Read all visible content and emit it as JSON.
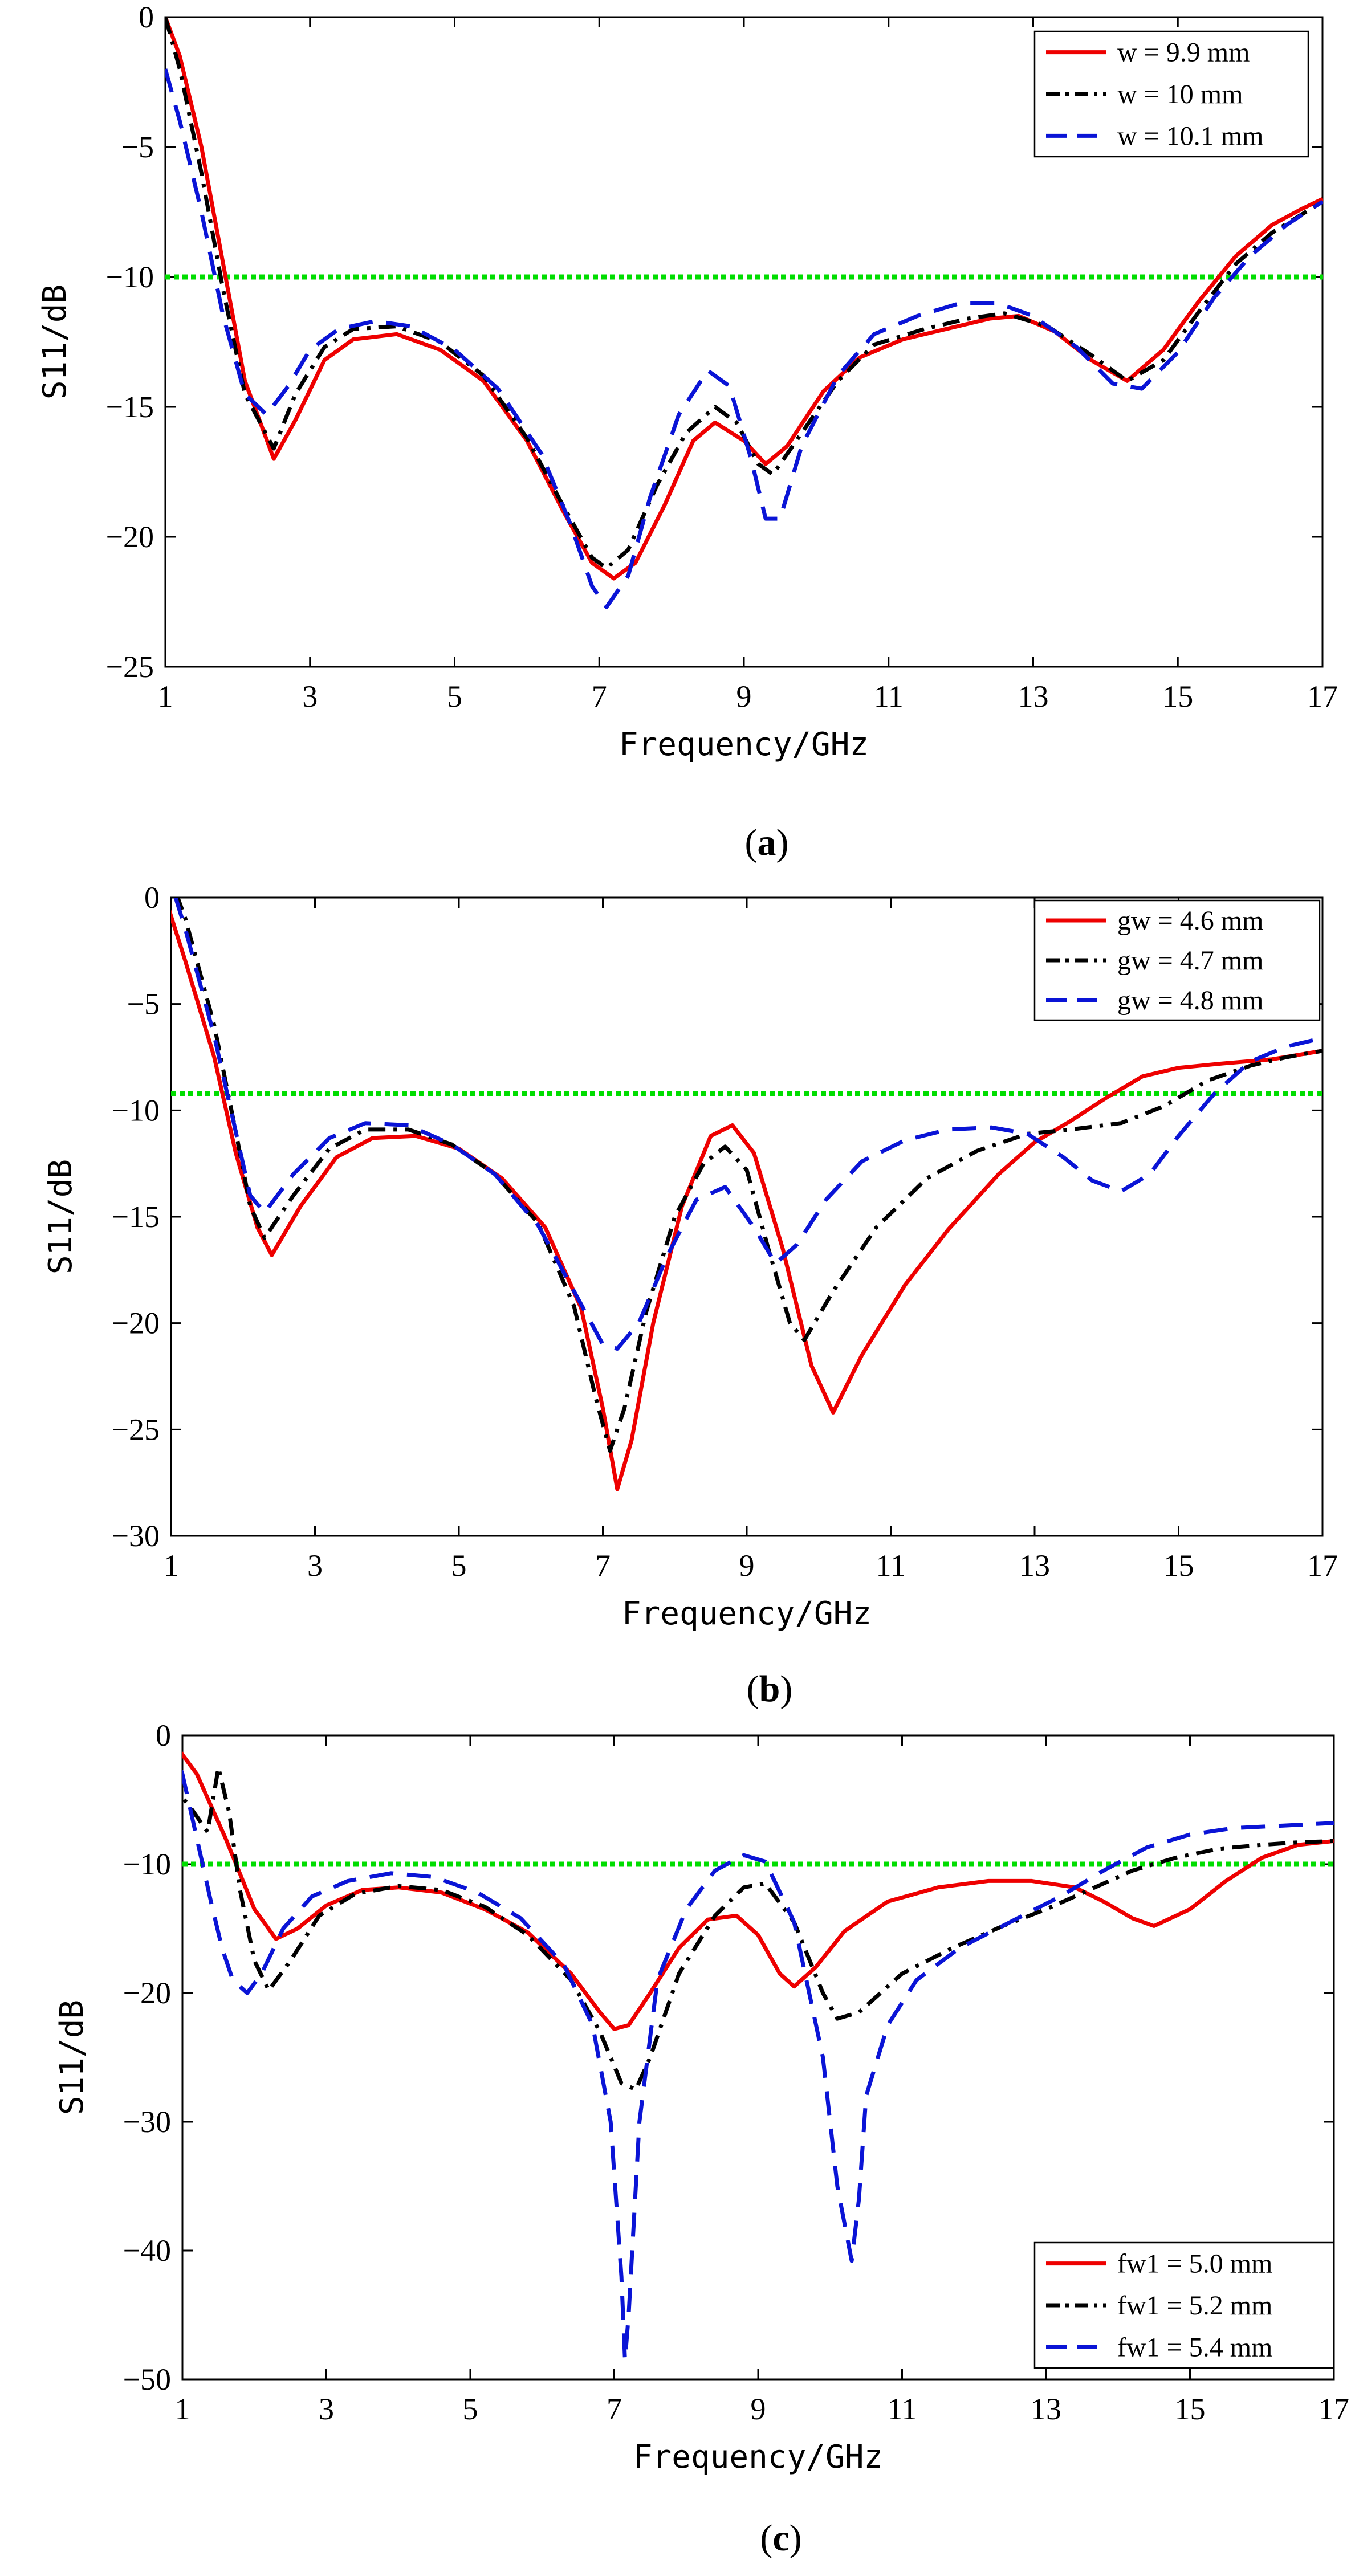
{
  "chart_data": [
    {
      "type": "line",
      "panel": "(a)",
      "caption_open": "(",
      "caption_letter": "a",
      "caption_close": ")",
      "xlabel": "Frequency/GHz",
      "ylabel": "S11/dB",
      "xlim": [
        1,
        17
      ],
      "ylim": [
        -25,
        0
      ],
      "xticks": [
        1,
        3,
        5,
        7,
        9,
        11,
        13,
        15,
        17
      ],
      "yticks": [
        0,
        -5,
        -10,
        -15,
        -20,
        -25
      ],
      "legend_position": "top-right",
      "threshold": {
        "y": -10,
        "color": "#00dd00"
      },
      "series": [
        {
          "name": "w = 9.9 mm",
          "color": "#ee0000",
          "dash": "solid",
          "x": [
            1,
            1.2,
            1.5,
            1.8,
            2.1,
            2.5,
            2.8,
            3.2,
            3.6,
            4.2,
            4.8,
            5.4,
            6.0,
            6.5,
            6.9,
            7.2,
            7.5,
            7.9,
            8.3,
            8.6,
            9.0,
            9.3,
            9.6,
            10.1,
            10.6,
            11.2,
            11.8,
            12.4,
            12.8,
            13.3,
            13.8,
            14.3,
            14.8,
            15.3,
            15.8,
            16.3,
            16.7,
            17
          ],
          "y": [
            0,
            -1.5,
            -5,
            -9.5,
            -14,
            -17,
            -15.5,
            -13.2,
            -12.4,
            -12.2,
            -12.8,
            -14,
            -16.3,
            -19,
            -21,
            -21.6,
            -21,
            -18.8,
            -16.3,
            -15.6,
            -16.3,
            -17.2,
            -16.5,
            -14.4,
            -13.1,
            -12.4,
            -12.0,
            -11.6,
            -11.5,
            -12.1,
            -13.2,
            -14.0,
            -12.8,
            -10.9,
            -9.2,
            -8.0,
            -7.4,
            -7.0
          ]
        },
        {
          "name": "w = 10 mm",
          "color": "#000000",
          "dash": "dashdot",
          "x": [
            1,
            1.2,
            1.5,
            1.8,
            2.1,
            2.5,
            2.8,
            3.2,
            3.6,
            4.2,
            4.8,
            5.4,
            6.0,
            6.5,
            6.9,
            7.1,
            7.4,
            7.8,
            8.2,
            8.6,
            8.9,
            9.2,
            9.4,
            9.8,
            10.3,
            10.8,
            11.5,
            12.1,
            12.6,
            13.2,
            13.8,
            14.3,
            14.8,
            15.3,
            15.8,
            16.3,
            17
          ],
          "y": [
            0,
            -2,
            -6,
            -10.5,
            -14.5,
            -16.6,
            -14.5,
            -12.7,
            -12.0,
            -11.9,
            -12.5,
            -13.8,
            -16.2,
            -18.8,
            -20.8,
            -21.2,
            -20.5,
            -18.0,
            -16.0,
            -15.0,
            -15.6,
            -17.2,
            -17.6,
            -16.0,
            -14.0,
            -12.6,
            -12.0,
            -11.6,
            -11.4,
            -11.9,
            -13.0,
            -14.0,
            -13.2,
            -11.3,
            -9.5,
            -8.3,
            -7.1
          ]
        },
        {
          "name": "w = 10.1 mm",
          "color": "#0a14d6",
          "dash": "dashed",
          "x": [
            1,
            1.2,
            1.5,
            1.8,
            2.1,
            2.4,
            2.7,
            3.0,
            3.4,
            3.9,
            4.4,
            5.0,
            5.6,
            6.2,
            6.6,
            6.9,
            7.1,
            7.4,
            7.7,
            8.1,
            8.5,
            8.8,
            9.1,
            9.3,
            9.5,
            9.8,
            10.3,
            10.8,
            11.4,
            12.0,
            12.5,
            13.0,
            13.6,
            14.1,
            14.5,
            15.0,
            15.5,
            16.0,
            16.5,
            17
          ],
          "y": [
            -2,
            -4,
            -7.5,
            -11.5,
            -14.5,
            -15.3,
            -14.2,
            -12.8,
            -12.0,
            -11.7,
            -11.9,
            -12.8,
            -14.3,
            -16.8,
            -19.5,
            -21.9,
            -22.7,
            -21.5,
            -18.5,
            -15.3,
            -13.6,
            -14.2,
            -17.0,
            -19.3,
            -19.3,
            -16.5,
            -13.8,
            -12.2,
            -11.5,
            -11.0,
            -11.0,
            -11.5,
            -12.7,
            -14.1,
            -14.3,
            -12.9,
            -10.8,
            -9.2,
            -8.0,
            -7.1
          ]
        }
      ]
    },
    {
      "type": "line",
      "panel": "(b)",
      "caption_open": "(",
      "caption_letter": "b",
      "caption_close": ")",
      "xlabel": "Frequency/GHz",
      "ylabel": "S11/dB",
      "xlim": [
        1,
        17
      ],
      "ylim": [
        -30,
        0
      ],
      "xticks": [
        1,
        3,
        5,
        7,
        9,
        11,
        13,
        15,
        17
      ],
      "yticks": [
        0,
        -5,
        -10,
        -15,
        -20,
        -25,
        -30
      ],
      "legend_position": "top-right",
      "threshold": {
        "y": -9.2,
        "color": "#00dd00"
      },
      "series": [
        {
          "name": "gw = 4.6 mm",
          "color": "#ee0000",
          "dash": "solid",
          "x": [
            0.9,
            1.2,
            1.6,
            1.9,
            2.2,
            2.4,
            2.8,
            3.3,
            3.8,
            4.4,
            5.0,
            5.6,
            6.2,
            6.7,
            7.0,
            7.2,
            7.4,
            7.7,
            8.1,
            8.5,
            8.8,
            9.1,
            9.5,
            9.9,
            10.2,
            10.6,
            11.2,
            11.8,
            12.5,
            13.0,
            13.5,
            14.0,
            14.5,
            15.0,
            15.6,
            16.3,
            17
          ],
          "y": [
            0.2,
            -3,
            -7.5,
            -12,
            -15.5,
            -16.8,
            -14.5,
            -12.2,
            -11.3,
            -11.2,
            -11.8,
            -13.2,
            -15.5,
            -19.3,
            -24.0,
            -27.8,
            -25.5,
            -20.0,
            -14.5,
            -11.2,
            -10.7,
            -12.0,
            -16.5,
            -22.0,
            -24.2,
            -21.5,
            -18.2,
            -15.6,
            -13.0,
            -11.5,
            -10.5,
            -9.4,
            -8.4,
            -8.0,
            -7.8,
            -7.6,
            -7.2
          ]
        },
        {
          "name": "gw = 4.7 mm",
          "color": "#000000",
          "dash": "dashdot",
          "x": [
            0.9,
            1.2,
            1.6,
            1.9,
            2.1,
            2.3,
            2.7,
            3.2,
            3.7,
            4.3,
            4.9,
            5.5,
            6.1,
            6.6,
            6.9,
            7.1,
            7.3,
            7.6,
            8.0,
            8.4,
            8.7,
            9.0,
            9.3,
            9.6,
            9.8,
            10.2,
            10.8,
            11.5,
            12.2,
            12.9,
            13.5,
            14.2,
            14.8,
            15.4,
            16.0,
            16.5,
            17
          ],
          "y": [
            1.8,
            -1,
            -6,
            -11,
            -14.5,
            -16.0,
            -14.0,
            -11.8,
            -10.9,
            -10.9,
            -11.6,
            -13.0,
            -15.3,
            -19.2,
            -23.5,
            -26.0,
            -24.0,
            -19.5,
            -15.0,
            -12.5,
            -11.7,
            -12.8,
            -16.5,
            -20.0,
            -20.8,
            -18.5,
            -15.5,
            -13.2,
            -11.9,
            -11.1,
            -10.9,
            -10.6,
            -9.8,
            -8.6,
            -7.9,
            -7.5,
            -7.2
          ]
        },
        {
          "name": "gw = 4.8 mm",
          "color": "#0a14d6",
          "dash": "dashed",
          "x": [
            0.9,
            1.2,
            1.6,
            1.9,
            2.1,
            2.3,
            2.7,
            3.2,
            3.7,
            4.3,
            4.9,
            5.5,
            6.1,
            6.6,
            7.0,
            7.2,
            7.5,
            7.9,
            8.3,
            8.7,
            9.1,
            9.4,
            9.7,
            10.1,
            10.6,
            11.2,
            11.8,
            12.4,
            12.9,
            13.4,
            13.8,
            14.2,
            14.6,
            15.0,
            15.5,
            16.0,
            16.5,
            17
          ],
          "y": [
            1.8,
            -1.5,
            -6.5,
            -11,
            -14,
            -14.8,
            -13.0,
            -11.3,
            -10.6,
            -10.7,
            -11.6,
            -13.0,
            -15.4,
            -18.5,
            -21.0,
            -21.2,
            -20.0,
            -16.8,
            -14.2,
            -13.6,
            -15.5,
            -17.2,
            -16.3,
            -14.2,
            -12.4,
            -11.4,
            -10.9,
            -10.8,
            -11.1,
            -12.2,
            -13.3,
            -13.8,
            -13.0,
            -11.2,
            -9.2,
            -7.7,
            -7.0,
            -6.6
          ]
        }
      ]
    },
    {
      "type": "line",
      "panel": "(c)",
      "caption_open": "(",
      "caption_letter": "c",
      "caption_close": ")",
      "xlabel": "Frequency/GHz",
      "ylabel": "S11/dB",
      "xlim": [
        1,
        17
      ],
      "ylim": [
        -50,
        0
      ],
      "xticks": [
        1,
        3,
        5,
        7,
        9,
        11,
        13,
        15,
        17
      ],
      "yticks": [
        0,
        -10,
        -20,
        -30,
        -40,
        -50
      ],
      "legend_position": "bottom-right",
      "threshold": {
        "y": -10,
        "color": "#00dd00"
      },
      "series": [
        {
          "name": "fw1 = 5.0 mm",
          "color": "#ee0000",
          "dash": "solid",
          "x": [
            0.8,
            1.2,
            1.6,
            2.0,
            2.3,
            2.6,
            3.0,
            3.5,
            4.0,
            4.6,
            5.2,
            5.8,
            6.4,
            6.8,
            7.0,
            7.2,
            7.5,
            7.9,
            8.3,
            8.7,
            9.0,
            9.3,
            9.5,
            9.8,
            10.2,
            10.8,
            11.5,
            12.2,
            12.8,
            13.4,
            13.8,
            14.2,
            14.5,
            15.0,
            15.5,
            16.0,
            16.5,
            17
          ],
          "y": [
            0,
            -3,
            -8,
            -13.5,
            -15.8,
            -15.0,
            -13.2,
            -12.0,
            -11.8,
            -12.2,
            -13.5,
            -15.3,
            -18.5,
            -21.5,
            -22.8,
            -22.5,
            -20.0,
            -16.5,
            -14.3,
            -14.0,
            -15.5,
            -18.5,
            -19.5,
            -18.0,
            -15.2,
            -12.9,
            -11.8,
            -11.3,
            -11.3,
            -11.8,
            -12.9,
            -14.2,
            -14.8,
            -13.5,
            -11.3,
            -9.5,
            -8.5,
            -8.2
          ]
        },
        {
          "name": "fw1 = 5.2 mm",
          "color": "#000000",
          "dash": "dashdot",
          "x": [
            0.8,
            1.1,
            1.35,
            1.5,
            1.65,
            1.8,
            2.0,
            2.2,
            2.5,
            2.9,
            3.4,
            4.0,
            4.6,
            5.2,
            5.8,
            6.4,
            6.8,
            7.1,
            7.3,
            7.5,
            7.9,
            8.4,
            8.8,
            9.1,
            9.5,
            9.9,
            10.1,
            10.4,
            11.0,
            11.7,
            12.4,
            13.0,
            13.6,
            14.2,
            14.8,
            15.4,
            16.0,
            16.5,
            17
          ],
          "y": [
            -3.5,
            -5.5,
            -7.5,
            -2.5,
            -6,
            -12,
            -17.5,
            -19.8,
            -17.5,
            -14.0,
            -12.3,
            -11.7,
            -12.0,
            -13.3,
            -15.5,
            -19.0,
            -23.0,
            -27.0,
            -27.5,
            -25.0,
            -18.5,
            -14.0,
            -11.8,
            -11.5,
            -14.5,
            -20.0,
            -22.0,
            -21.5,
            -18.5,
            -16.5,
            -14.8,
            -13.5,
            -12.0,
            -10.5,
            -9.5,
            -8.8,
            -8.5,
            -8.3,
            -8.2
          ]
        },
        {
          "name": "fw1 = 5.4 mm",
          "color": "#0a14d6",
          "dash": "dashed",
          "x": [
            0.8,
            1.0,
            1.2,
            1.4,
            1.55,
            1.7,
            1.9,
            2.1,
            2.4,
            2.8,
            3.3,
            3.9,
            4.5,
            5.1,
            5.7,
            6.3,
            6.7,
            6.95,
            7.1,
            7.15,
            7.2,
            7.35,
            7.6,
            8.0,
            8.4,
            8.8,
            9.1,
            9.5,
            9.9,
            10.1,
            10.3,
            10.4,
            10.5,
            10.8,
            11.2,
            11.8,
            12.5,
            13.2,
            13.8,
            14.4,
            15.0,
            15.6,
            16.3,
            17
          ],
          "y": [
            0,
            -3,
            -8,
            -13,
            -16.5,
            -19.0,
            -20.0,
            -18.5,
            -15.0,
            -12.5,
            -11.3,
            -10.7,
            -11.0,
            -12.2,
            -14.2,
            -17.8,
            -22.5,
            -30.0,
            -42.0,
            -48.5,
            -45.0,
            -30.0,
            -19.0,
            -13.5,
            -10.5,
            -9.3,
            -9.8,
            -14.5,
            -25.0,
            -35.0,
            -40.8,
            -36.0,
            -28.0,
            -22.5,
            -19.0,
            -16.5,
            -14.5,
            -12.5,
            -10.5,
            -8.7,
            -7.7,
            -7.2,
            -7.0,
            -6.8
          ]
        }
      ]
    }
  ]
}
